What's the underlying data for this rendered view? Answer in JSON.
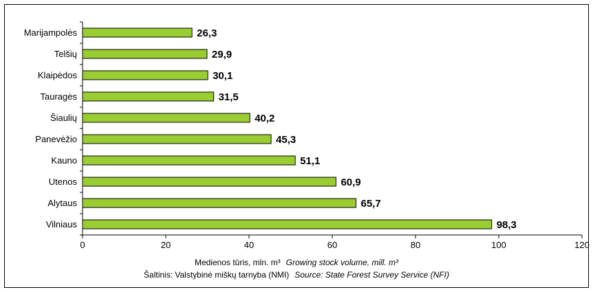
{
  "chart_data": {
    "type": "bar",
    "orientation": "horizontal",
    "categories": [
      "Marijampolės",
      "Telšių",
      "Klaipėdos",
      "Tauragės",
      "Šiaulių",
      "Panevėžio",
      "Kauno",
      "Utenos",
      "Alytaus",
      "Vilniaus"
    ],
    "values": [
      26.3,
      29.9,
      30.1,
      31.5,
      40.2,
      45.3,
      51.1,
      60.9,
      65.7,
      98.3
    ],
    "value_labels": [
      "26,3",
      "29,9",
      "30,1",
      "31,5",
      "40,2",
      "45,3",
      "51,1",
      "60,9",
      "65,7",
      "98,3"
    ],
    "xlim": [
      0,
      120
    ],
    "xticks": [
      0,
      20,
      40,
      60,
      80,
      100,
      120
    ],
    "grid": false,
    "legend": "none",
    "xlabel": "Medienos tūris, mln. m³",
    "xlabel_en": "Growing stock volume, mill. m³",
    "source": "Šaltinis: Valstybinė miškų tarnyba (NMI)",
    "source_en": "Source: State Forest Survey Service (NFI)",
    "colors": {
      "bar_fill": "#9acd32",
      "bar_stroke": "#000000"
    }
  }
}
